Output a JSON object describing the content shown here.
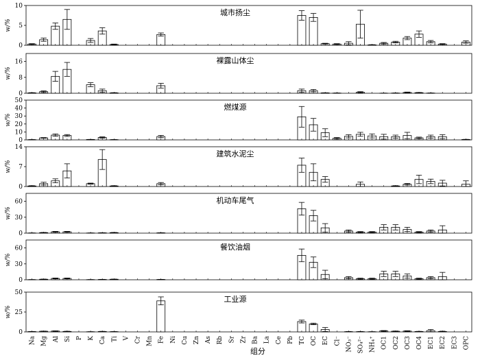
{
  "chart_data": {
    "type": "bar",
    "xlabel": "组分",
    "categories": [
      "Na",
      "Mg",
      "Al",
      "Si",
      "P",
      "K",
      "Ca",
      "Ti",
      "V",
      "Cr",
      "Mn",
      "Fe",
      "Ni",
      "Cu",
      "Zn",
      "As",
      "Rb",
      "Sr",
      "Zr",
      "Ba",
      "La",
      "Ce",
      "Pb",
      "TC",
      "OC",
      "EC",
      "Cl⁻",
      "NO₃⁻",
      "SO₄²⁻",
      "NH₄⁺",
      "OC1",
      "OC2",
      "OC3",
      "OC4",
      "EC1",
      "EC2",
      "EC3",
      "OPC"
    ],
    "panels": [
      {
        "title": "城市扬尘",
        "ylabel": "w/%",
        "ylim": [
          0,
          10
        ],
        "yticks": [
          0,
          5,
          10
        ],
        "values": [
          0.3,
          1.4,
          4.8,
          6.5,
          0,
          1.2,
          3.6,
          0.2,
          0,
          0,
          0,
          2.7,
          0,
          0,
          0,
          0,
          0,
          0,
          0,
          0,
          0,
          0,
          0,
          7.5,
          7.0,
          0.4,
          0.3,
          0.5,
          5.3,
          0.1,
          0.5,
          0.8,
          1.8,
          2.8,
          0.9,
          0.3,
          0,
          0.8
        ],
        "errors": [
          0.1,
          0.4,
          0.8,
          2.5,
          0,
          0.5,
          0.8,
          0.1,
          0,
          0,
          0,
          0.4,
          0,
          0,
          0,
          0,
          0,
          0,
          0,
          0,
          0,
          0,
          0,
          1.2,
          1.0,
          0.1,
          0.1,
          0.4,
          3.5,
          0.05,
          0.2,
          0.2,
          0.4,
          0.8,
          0.3,
          0.1,
          0,
          0.3
        ]
      },
      {
        "title": "裸露山体尘",
        "ylabel": "w/%",
        "ylim": [
          0,
          20
        ],
        "yticks": [
          0,
          8,
          16
        ],
        "values": [
          0.2,
          0.8,
          8.5,
          12.0,
          0,
          4.3,
          1.3,
          0.2,
          0,
          0,
          0,
          3.8,
          0,
          0,
          0,
          0,
          0,
          0,
          0,
          0,
          0,
          0,
          0,
          1.3,
          1.3,
          0.2,
          0.1,
          0,
          0.5,
          0,
          0.05,
          0.1,
          0.4,
          0.3,
          0.1,
          0,
          0,
          0
        ],
        "errors": [
          0.1,
          0.4,
          2.5,
          3.5,
          0,
          1.0,
          0.8,
          0.1,
          0,
          0,
          0,
          1.2,
          0,
          0,
          0,
          0,
          0,
          0,
          0,
          0,
          0,
          0,
          0,
          0.8,
          0.6,
          0.05,
          0.05,
          0,
          0.3,
          0,
          0.05,
          0.05,
          0.2,
          0.1,
          0.05,
          0,
          0,
          0
        ]
      },
      {
        "title": "燃煤源",
        "ylabel": "w/%",
        "ylim": [
          0,
          50
        ],
        "yticks": [
          0,
          10,
          20,
          30,
          40,
          50
        ],
        "values": [
          0.3,
          2.5,
          6.0,
          5.5,
          0,
          0.5,
          3.0,
          0.3,
          0,
          0,
          0,
          4.2,
          0,
          0,
          0,
          0,
          0,
          0,
          0,
          0,
          0,
          0,
          0,
          29,
          19,
          9,
          2,
          4.5,
          7,
          5,
          4,
          4,
          5.5,
          2.5,
          4,
          4,
          0,
          0.5
        ],
        "errors": [
          0.1,
          0.4,
          1.5,
          1.2,
          0,
          0.1,
          0.8,
          0.1,
          0,
          0,
          0,
          1.5,
          0,
          0,
          0,
          0,
          0,
          0,
          0,
          0,
          0,
          0,
          0,
          13,
          8,
          5,
          1,
          2,
          2.5,
          2.5,
          3,
          2,
          4,
          1,
          2,
          2.5,
          0,
          0.2
        ]
      },
      {
        "title": "建筑水泥尘",
        "ylabel": "w/%",
        "ylim": [
          0,
          14
        ],
        "yticks": [
          0,
          7,
          14
        ],
        "values": [
          0.2,
          1.0,
          2.0,
          5.5,
          0,
          1.0,
          9.5,
          0.2,
          0,
          0,
          0,
          1.0,
          0,
          0,
          0,
          0,
          0,
          0,
          0,
          0,
          0,
          0,
          0,
          7.5,
          5.0,
          2.5,
          0,
          0,
          0.8,
          0,
          0,
          0.2,
          0.8,
          2.5,
          1.8,
          1.2,
          0,
          0.8
        ],
        "errors": [
          0.1,
          0.5,
          0.7,
          2.5,
          0,
          0.2,
          3.5,
          0.1,
          0,
          0,
          0,
          0.4,
          0,
          0,
          0,
          0,
          0,
          0,
          0,
          0,
          0,
          0,
          0,
          2.5,
          3.0,
          1.0,
          0,
          0,
          0.8,
          0,
          0,
          0.1,
          0.3,
          1.5,
          0.8,
          1.0,
          0,
          1.2
        ]
      },
      {
        "title": "机动车尾气",
        "ylabel": "w/%",
        "ylim": [
          0,
          75
        ],
        "yticks": [
          0,
          30,
          60
        ],
        "values": [
          0.3,
          1.0,
          2.5,
          2.5,
          0,
          0.3,
          0.6,
          1.0,
          0,
          0,
          0,
          0.6,
          0,
          0,
          0,
          0,
          0,
          0,
          0,
          0,
          0,
          0,
          0,
          46,
          33,
          10,
          0,
          4,
          2,
          2,
          11,
          11,
          7,
          2,
          4,
          6,
          0,
          0
        ],
        "errors": [
          0.1,
          0.3,
          0.8,
          0.8,
          0,
          0.1,
          0.2,
          0.3,
          0,
          0,
          0,
          0.2,
          0,
          0,
          0,
          0,
          0,
          0,
          0,
          0,
          0,
          0,
          0,
          12,
          10,
          8,
          0,
          2,
          1,
          1,
          5,
          5,
          4,
          1,
          2,
          8,
          0,
          0
        ]
      },
      {
        "title": "餐饮油烟",
        "ylabel": "w/%",
        "ylim": [
          0,
          75
        ],
        "yticks": [
          0,
          30,
          60
        ],
        "values": [
          0.3,
          1.0,
          2.5,
          2.5,
          0,
          0.3,
          0.6,
          1.0,
          0,
          0,
          0,
          0.6,
          0,
          0,
          0,
          0,
          0,
          0,
          0,
          0,
          0,
          0,
          0,
          46,
          33,
          10,
          0,
          4,
          2,
          2,
          11,
          11,
          7,
          2,
          4,
          6,
          0,
          0
        ],
        "errors": [
          0.1,
          0.3,
          0.8,
          0.8,
          0,
          0.1,
          0.2,
          0.3,
          0,
          0,
          0,
          0.2,
          0,
          0,
          0,
          0,
          0,
          0,
          0,
          0,
          0,
          0,
          0,
          12,
          10,
          8,
          0,
          2,
          1,
          1,
          5,
          5,
          4,
          1,
          2,
          8,
          0,
          0
        ]
      },
      {
        "title": "工业源",
        "ylabel": "w/%",
        "ylim": [
          0,
          50
        ],
        "yticks": [
          0,
          25,
          50
        ],
        "values": [
          0.4,
          0.8,
          1.0,
          0.6,
          0,
          0.2,
          0.5,
          0.3,
          0,
          0,
          0,
          39,
          0,
          0,
          0,
          0,
          0,
          0,
          0,
          0,
          0,
          0,
          0,
          13,
          10,
          3,
          0,
          0.3,
          0.3,
          0.2,
          1.2,
          0.8,
          1.0,
          0.5,
          1.5,
          0.5,
          0,
          0
        ],
        "errors": [
          0.1,
          0.2,
          0.3,
          0.2,
          0,
          0.1,
          0.2,
          0.1,
          0,
          0,
          0,
          5,
          0,
          0,
          0,
          0,
          0,
          0,
          0,
          0,
          0,
          0,
          0,
          1.8,
          1.0,
          2.5,
          0,
          0.2,
          0.2,
          0.1,
          0.5,
          0.3,
          0.4,
          0.2,
          1.5,
          0.4,
          0,
          0
        ]
      }
    ]
  }
}
